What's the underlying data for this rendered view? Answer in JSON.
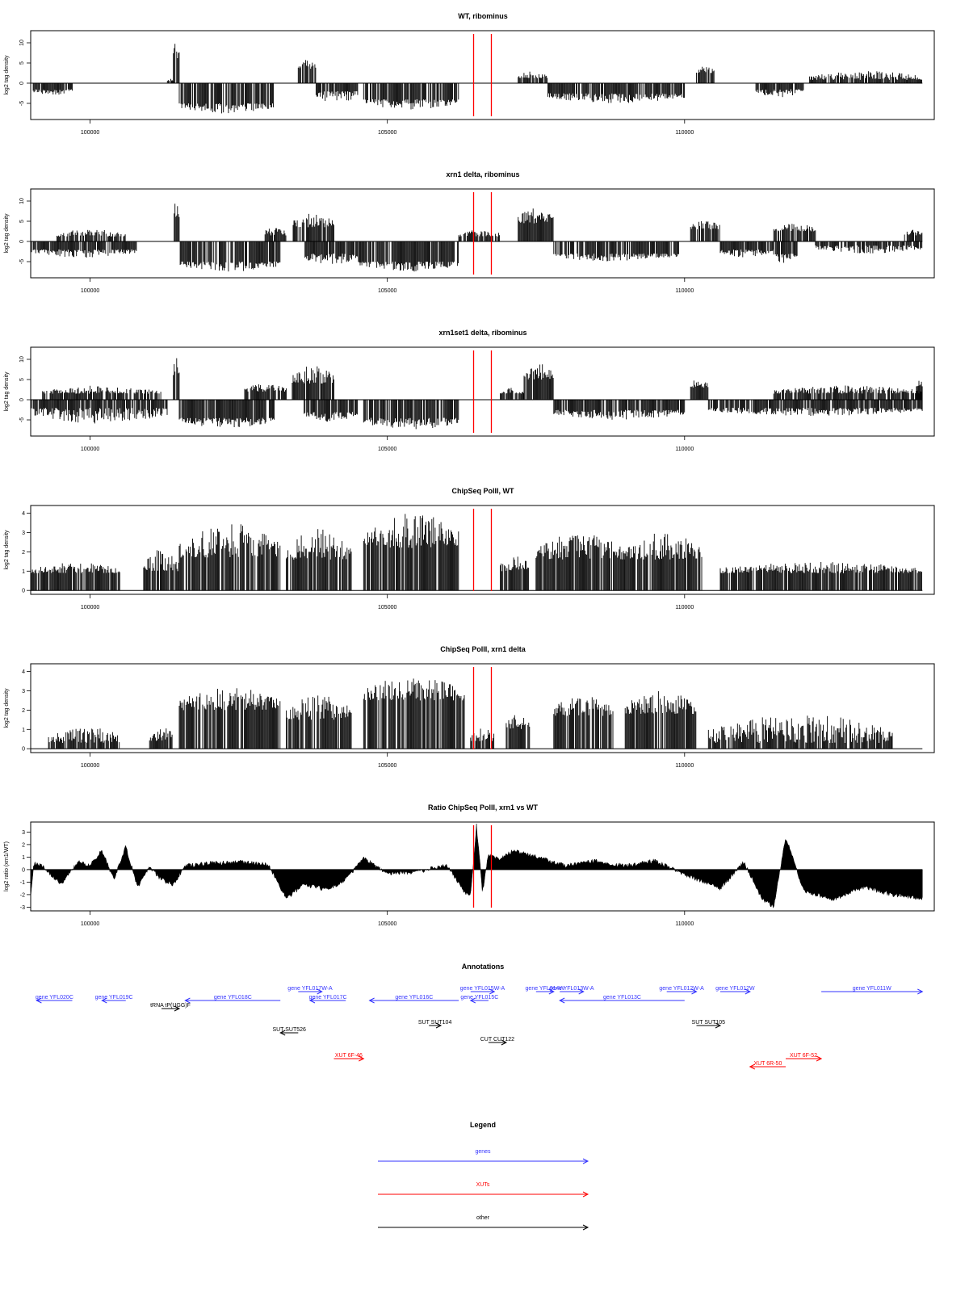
{
  "colors": {
    "signal": "#000000",
    "marker": "#ff0000",
    "gene": "#3333ff",
    "xut": "#ff0000",
    "other": "#000000"
  },
  "x_axis": {
    "domain": [
      99000,
      114200
    ],
    "ticks": [
      100000,
      105000,
      110000
    ],
    "tick_labels": [
      "100000",
      "105000",
      "110000"
    ]
  },
  "markers": [
    106450,
    106750
  ],
  "chart_data": [
    {
      "type": "bar",
      "title": "WT, ribominus",
      "ylabel": "log2 tag density",
      "ylim": [
        -9,
        13
      ],
      "yticks": [
        -5,
        0,
        5,
        10
      ],
      "yticks_rotated": true,
      "grid": false,
      "markers": true,
      "segments": [
        {
          "x0": 99000,
          "x1": 99700,
          "amp": -3,
          "base": -1.5
        },
        {
          "x0": 101300,
          "x1": 101400,
          "amp": 1.5,
          "base": 0.5
        },
        {
          "x0": 101400,
          "x1": 101500,
          "amp": 11,
          "base": 6
        },
        {
          "x0": 101500,
          "x1": 103100,
          "amp": -7.5,
          "base": -5
        },
        {
          "x0": 103500,
          "x1": 103800,
          "amp": 6,
          "base": 3.5
        },
        {
          "x0": 103800,
          "x1": 104500,
          "amp": -5,
          "base": -2
        },
        {
          "x0": 104600,
          "x1": 106200,
          "amp": -6.5,
          "base": -4
        },
        {
          "x0": 107200,
          "x1": 107700,
          "amp": 3,
          "base": 1.2
        },
        {
          "x0": 107700,
          "x1": 110000,
          "amp": -5,
          "base": -2.5
        },
        {
          "x0": 110200,
          "x1": 110500,
          "amp": 4.5,
          "base": 2.5
        },
        {
          "x0": 111200,
          "x1": 112000,
          "amp": -3.5,
          "base": -1.5
        },
        {
          "x0": 112100,
          "x1": 114000,
          "amp": 3,
          "base": 0.8
        }
      ]
    },
    {
      "type": "bar",
      "title": "xrn1 delta, ribominus",
      "ylabel": "log2 tag density",
      "ylim": [
        -9,
        13
      ],
      "yticks": [
        -5,
        0,
        5,
        10
      ],
      "yticks_rotated": true,
      "grid": false,
      "markers": true,
      "segments": [
        {
          "x0": 99000,
          "x1": 100800,
          "amp": -4,
          "base": -2
        },
        {
          "x0": 99400,
          "x1": 100600,
          "amp": 3,
          "base": 1.2
        },
        {
          "x0": 101400,
          "x1": 101500,
          "amp": 10,
          "base": 6
        },
        {
          "x0": 101500,
          "x1": 103200,
          "amp": -7.5,
          "base": -5
        },
        {
          "x0": 102900,
          "x1": 103300,
          "amp": 3.5,
          "base": 1.5
        },
        {
          "x0": 103400,
          "x1": 104100,
          "amp": 7,
          "base": 3.5
        },
        {
          "x0": 103600,
          "x1": 104500,
          "amp": -6,
          "base": -3
        },
        {
          "x0": 104500,
          "x1": 106200,
          "amp": -7.5,
          "base": -5
        },
        {
          "x0": 106200,
          "x1": 106900,
          "amp": 3,
          "base": 1.2
        },
        {
          "x0": 107200,
          "x1": 107800,
          "amp": 8.5,
          "base": 4.5
        },
        {
          "x0": 107800,
          "x1": 109900,
          "amp": -5,
          "base": -3
        },
        {
          "x0": 110100,
          "x1": 110600,
          "amp": 5.5,
          "base": 3
        },
        {
          "x0": 110600,
          "x1": 111500,
          "amp": -4,
          "base": -2
        },
        {
          "x0": 111500,
          "x1": 111900,
          "amp": -5.5,
          "base": -3
        },
        {
          "x0": 111500,
          "x1": 112200,
          "amp": 4.5,
          "base": 2.5
        },
        {
          "x0": 112200,
          "x1": 114000,
          "amp": -3,
          "base": -1
        },
        {
          "x0": 113700,
          "x1": 114000,
          "amp": 3,
          "base": 1.5
        }
      ]
    },
    {
      "type": "bar",
      "title": "xrn1set1 delta, ribominus",
      "ylabel": "log2 tag density",
      "ylim": [
        -9,
        13
      ],
      "yticks": [
        -5,
        0,
        5,
        10
      ],
      "yticks_rotated": true,
      "grid": false,
      "markers": true,
      "segments": [
        {
          "x0": 99000,
          "x1": 101300,
          "amp": -6,
          "base": -2
        },
        {
          "x0": 99200,
          "x1": 101200,
          "amp": 3.5,
          "base": 1.5
        },
        {
          "x0": 101400,
          "x1": 101500,
          "amp": 11,
          "base": 6
        },
        {
          "x0": 101500,
          "x1": 103100,
          "amp": -7,
          "base": -4.5
        },
        {
          "x0": 102600,
          "x1": 103300,
          "amp": 4,
          "base": 2
        },
        {
          "x0": 103400,
          "x1": 104100,
          "amp": 8.5,
          "base": 4
        },
        {
          "x0": 103600,
          "x1": 104500,
          "amp": -5.5,
          "base": -3
        },
        {
          "x0": 104600,
          "x1": 106200,
          "amp": -7.5,
          "base": -4.5
        },
        {
          "x0": 106900,
          "x1": 107300,
          "amp": 3,
          "base": 1.5
        },
        {
          "x0": 107300,
          "x1": 107800,
          "amp": 9,
          "base": 5
        },
        {
          "x0": 107800,
          "x1": 110000,
          "amp": -5,
          "base": -2.5
        },
        {
          "x0": 110100,
          "x1": 110400,
          "amp": 5.5,
          "base": 3
        },
        {
          "x0": 110400,
          "x1": 114000,
          "amp": -4,
          "base": -2
        },
        {
          "x0": 111500,
          "x1": 114000,
          "amp": 3.5,
          "base": 1.5
        },
        {
          "x0": 113900,
          "x1": 114000,
          "amp": 5.5,
          "base": 3
        }
      ]
    },
    {
      "type": "bar",
      "title": "ChipSeq PolII, WT",
      "ylabel": "log2 tag density",
      "ylim": [
        -0.2,
        4.4
      ],
      "yticks": [
        0,
        1,
        2,
        3,
        4
      ],
      "grid": false,
      "markers": true,
      "segments": [
        {
          "x0": 99000,
          "x1": 100500,
          "amp": 1.5,
          "base": 0.9
        },
        {
          "x0": 100900,
          "x1": 101500,
          "amp": 2.2,
          "base": 1
        },
        {
          "x0": 101500,
          "x1": 103200,
          "amp": 3.5,
          "base": 1.7
        },
        {
          "x0": 103300,
          "x1": 104400,
          "amp": 3.2,
          "base": 1.6
        },
        {
          "x0": 104600,
          "x1": 106200,
          "amp": 4.1,
          "base": 2.2
        },
        {
          "x0": 106900,
          "x1": 107400,
          "amp": 1.8,
          "base": 1
        },
        {
          "x0": 107500,
          "x1": 109000,
          "amp": 3,
          "base": 1.6
        },
        {
          "x0": 109000,
          "x1": 110300,
          "amp": 3,
          "base": 1.6
        },
        {
          "x0": 110600,
          "x1": 114000,
          "amp": 1.5,
          "base": 0.9
        }
      ]
    },
    {
      "type": "bar",
      "title": "ChipSeq PolII, xrn1 delta",
      "ylabel": "log2 tag density",
      "ylim": [
        -0.2,
        4.4
      ],
      "yticks": [
        0,
        1,
        2,
        3,
        4
      ],
      "grid": false,
      "markers": true,
      "segments": [
        {
          "x0": 99300,
          "x1": 100500,
          "amp": 1.2,
          "base": 0.3
        },
        {
          "x0": 101000,
          "x1": 101400,
          "amp": 1.2,
          "base": 0.4
        },
        {
          "x0": 101500,
          "x1": 103200,
          "amp": 3.2,
          "base": 2
        },
        {
          "x0": 103300,
          "x1": 104400,
          "amp": 2.8,
          "base": 1.5
        },
        {
          "x0": 104600,
          "x1": 106300,
          "amp": 3.8,
          "base": 2.5
        },
        {
          "x0": 106400,
          "x1": 106800,
          "amp": 1.2,
          "base": 0.4
        },
        {
          "x0": 107000,
          "x1": 107400,
          "amp": 1.8,
          "base": 1
        },
        {
          "x0": 107800,
          "x1": 108800,
          "amp": 2.8,
          "base": 1.7
        },
        {
          "x0": 109000,
          "x1": 110200,
          "amp": 3,
          "base": 1.8
        },
        {
          "x0": 110400,
          "x1": 113500,
          "amp": 1.8,
          "base": 0.3
        }
      ]
    },
    {
      "type": "area",
      "title": "Ratio ChipSeq PolII, xrn1 vs WT",
      "ylabel": "log2 ratio (xrn1/WT)",
      "ylim": [
        -3.3,
        3.8
      ],
      "yticks": [
        -3,
        -2,
        -1,
        0,
        1,
        2,
        3
      ],
      "grid": false,
      "markers": true,
      "profile": [
        [
          99000,
          -2.3
        ],
        [
          99050,
          0.5
        ],
        [
          99200,
          0.3
        ],
        [
          99500,
          -1.2
        ],
        [
          99800,
          0.6
        ],
        [
          100000,
          0.4
        ],
        [
          100200,
          1.5
        ],
        [
          100400,
          -0.8
        ],
        [
          100600,
          1.8
        ],
        [
          100800,
          -1.4
        ],
        [
          101000,
          0.2
        ],
        [
          101200,
          -0.8
        ],
        [
          101400,
          -1.2
        ],
        [
          101600,
          0.3
        ],
        [
          102000,
          0.5
        ],
        [
          102500,
          0.6
        ],
        [
          103000,
          0.4
        ],
        [
          103300,
          -2.3
        ],
        [
          103600,
          -1.2
        ],
        [
          104000,
          -1.6
        ],
        [
          104300,
          -0.8
        ],
        [
          104600,
          0.9
        ],
        [
          105000,
          -0.3
        ],
        [
          105500,
          -0.2
        ],
        [
          106000,
          0.4
        ],
        [
          106300,
          -1.8
        ],
        [
          106400,
          -2
        ],
        [
          106500,
          3.5
        ],
        [
          106600,
          -1.8
        ],
        [
          106700,
          1.2
        ],
        [
          106900,
          0.8
        ],
        [
          107100,
          1.5
        ],
        [
          107600,
          0.9
        ],
        [
          108000,
          0.3
        ],
        [
          108500,
          0.7
        ],
        [
          109000,
          0.3
        ],
        [
          109500,
          0.7
        ],
        [
          110000,
          -0.4
        ],
        [
          110600,
          -1.5
        ],
        [
          111000,
          0.6
        ],
        [
          111300,
          -2.3
        ],
        [
          111500,
          -3
        ],
        [
          111700,
          2.6
        ],
        [
          112000,
          -1.7
        ],
        [
          112500,
          -2.4
        ],
        [
          113000,
          -1.4
        ],
        [
          113500,
          -2
        ],
        [
          114000,
          -2.3
        ]
      ]
    }
  ],
  "annotations": {
    "title": "Annotations",
    "features": [
      {
        "label": "gene YFL020C",
        "kind": "gene",
        "dir": "left",
        "start": 99100,
        "end": 99700,
        "row": 0
      },
      {
        "label": "gene YFL019C",
        "kind": "gene",
        "dir": "left",
        "start": 100200,
        "end": 100600,
        "row": 0
      },
      {
        "label": "tRNA tP(UGG)F",
        "kind": "other",
        "dir": "right",
        "start": 101200,
        "end": 101500,
        "row": 1
      },
      {
        "label": "gene YFL018C",
        "kind": "gene",
        "dir": "left",
        "start": 101600,
        "end": 103200,
        "row": 0
      },
      {
        "label": "gene YFL017W-A",
        "kind": "gene",
        "dir": "right",
        "start": 103500,
        "end": 103900,
        "row": -1
      },
      {
        "label": "gene YFL017C",
        "kind": "gene",
        "dir": "left",
        "start": 103700,
        "end": 104300,
        "row": 0
      },
      {
        "label": "gene YFL016C",
        "kind": "gene",
        "dir": "left",
        "start": 104700,
        "end": 106200,
        "row": 0
      },
      {
        "label": "gene YFL015W-A",
        "kind": "gene",
        "dir": "right",
        "start": 106400,
        "end": 106800,
        "row": -1
      },
      {
        "label": "gene YFL015C",
        "kind": "gene",
        "dir": "left",
        "start": 106400,
        "end": 106700,
        "row": 0
      },
      {
        "label": "gene YFL014W",
        "kind": "gene",
        "dir": "right",
        "start": 107500,
        "end": 107800,
        "row": -1
      },
      {
        "label": "gene YFL013W-A",
        "kind": "gene",
        "dir": "right",
        "start": 107900,
        "end": 108300,
        "row": -1
      },
      {
        "label": "gene YFL013C",
        "kind": "gene",
        "dir": "left",
        "start": 107900,
        "end": 110000,
        "row": 0
      },
      {
        "label": "gene YFL012W-A",
        "kind": "gene",
        "dir": "right",
        "start": 109700,
        "end": 110200,
        "row": -1
      },
      {
        "label": "gene YFL012W",
        "kind": "gene",
        "dir": "right",
        "start": 110600,
        "end": 111100,
        "row": -1
      },
      {
        "label": "gene YFL011W",
        "kind": "gene",
        "dir": "right",
        "start": 112300,
        "end": 114000,
        "row": -1
      },
      {
        "label": "SUT SUT526",
        "kind": "other",
        "dir": "left",
        "start": 103200,
        "end": 103500,
        "row": 3
      },
      {
        "label": "SUT SUT104",
        "kind": "other",
        "dir": "right",
        "start": 105700,
        "end": 105900,
        "row": 2
      },
      {
        "label": "CUT CUT122",
        "kind": "other",
        "dir": "right",
        "start": 106700,
        "end": 107000,
        "row": 4
      },
      {
        "label": "SUT SUT105",
        "kind": "other",
        "dir": "right",
        "start": 110200,
        "end": 110600,
        "row": 2
      },
      {
        "label": "XUT 6F-46",
        "kind": "xut",
        "dir": "right",
        "start": 104100,
        "end": 104600,
        "row": 6
      },
      {
        "label": "XUT 6F-52",
        "kind": "xut",
        "dir": "right",
        "start": 111700,
        "end": 112300,
        "row": 6
      },
      {
        "label": "XUT 6R-50",
        "kind": "xut",
        "dir": "left",
        "start": 111100,
        "end": 111700,
        "row": 7
      }
    ]
  },
  "legend": {
    "title": "Legend",
    "items": [
      {
        "label": "genes",
        "kind": "gene"
      },
      {
        "label": "XUTs",
        "kind": "xut"
      },
      {
        "label": "other",
        "kind": "other"
      }
    ]
  }
}
